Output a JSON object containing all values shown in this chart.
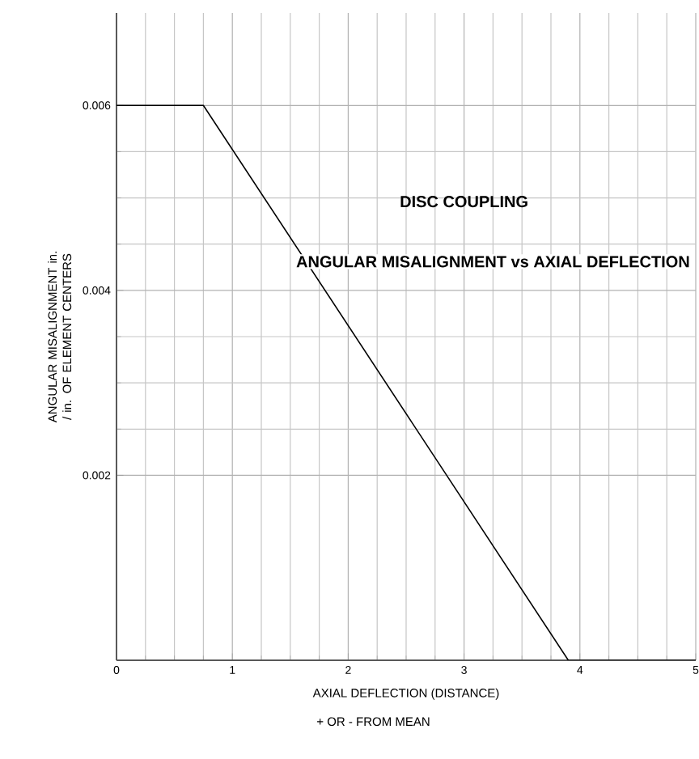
{
  "chart_data": {
    "type": "line",
    "title": "DISC COUPLING",
    "subtitle": "ANGULAR MISALIGNMENT vs AXIAL DEFLECTION",
    "xlabel": "AXIAL DEFLECTION (DISTANCE)",
    "ylabel": "ANGULAR MISALIGNMENT in. / in. OF ELEMENT CENTERS",
    "annotations": [
      "+ OR - FROM MEAN"
    ],
    "x": [
      0,
      0.75,
      3.9,
      5
    ],
    "series": [
      {
        "color": "#000000",
        "values": [
          0.006,
          0.006,
          0,
          0
        ]
      }
    ],
    "xlim": [
      0,
      5
    ],
    "ylim": [
      0,
      0.007
    ],
    "xticks": [
      0,
      1,
      2,
      3,
      4,
      5
    ],
    "yticks": [
      0.002,
      0.004,
      0.006
    ],
    "grid": true,
    "marker": "none",
    "line_style": "solid"
  }
}
